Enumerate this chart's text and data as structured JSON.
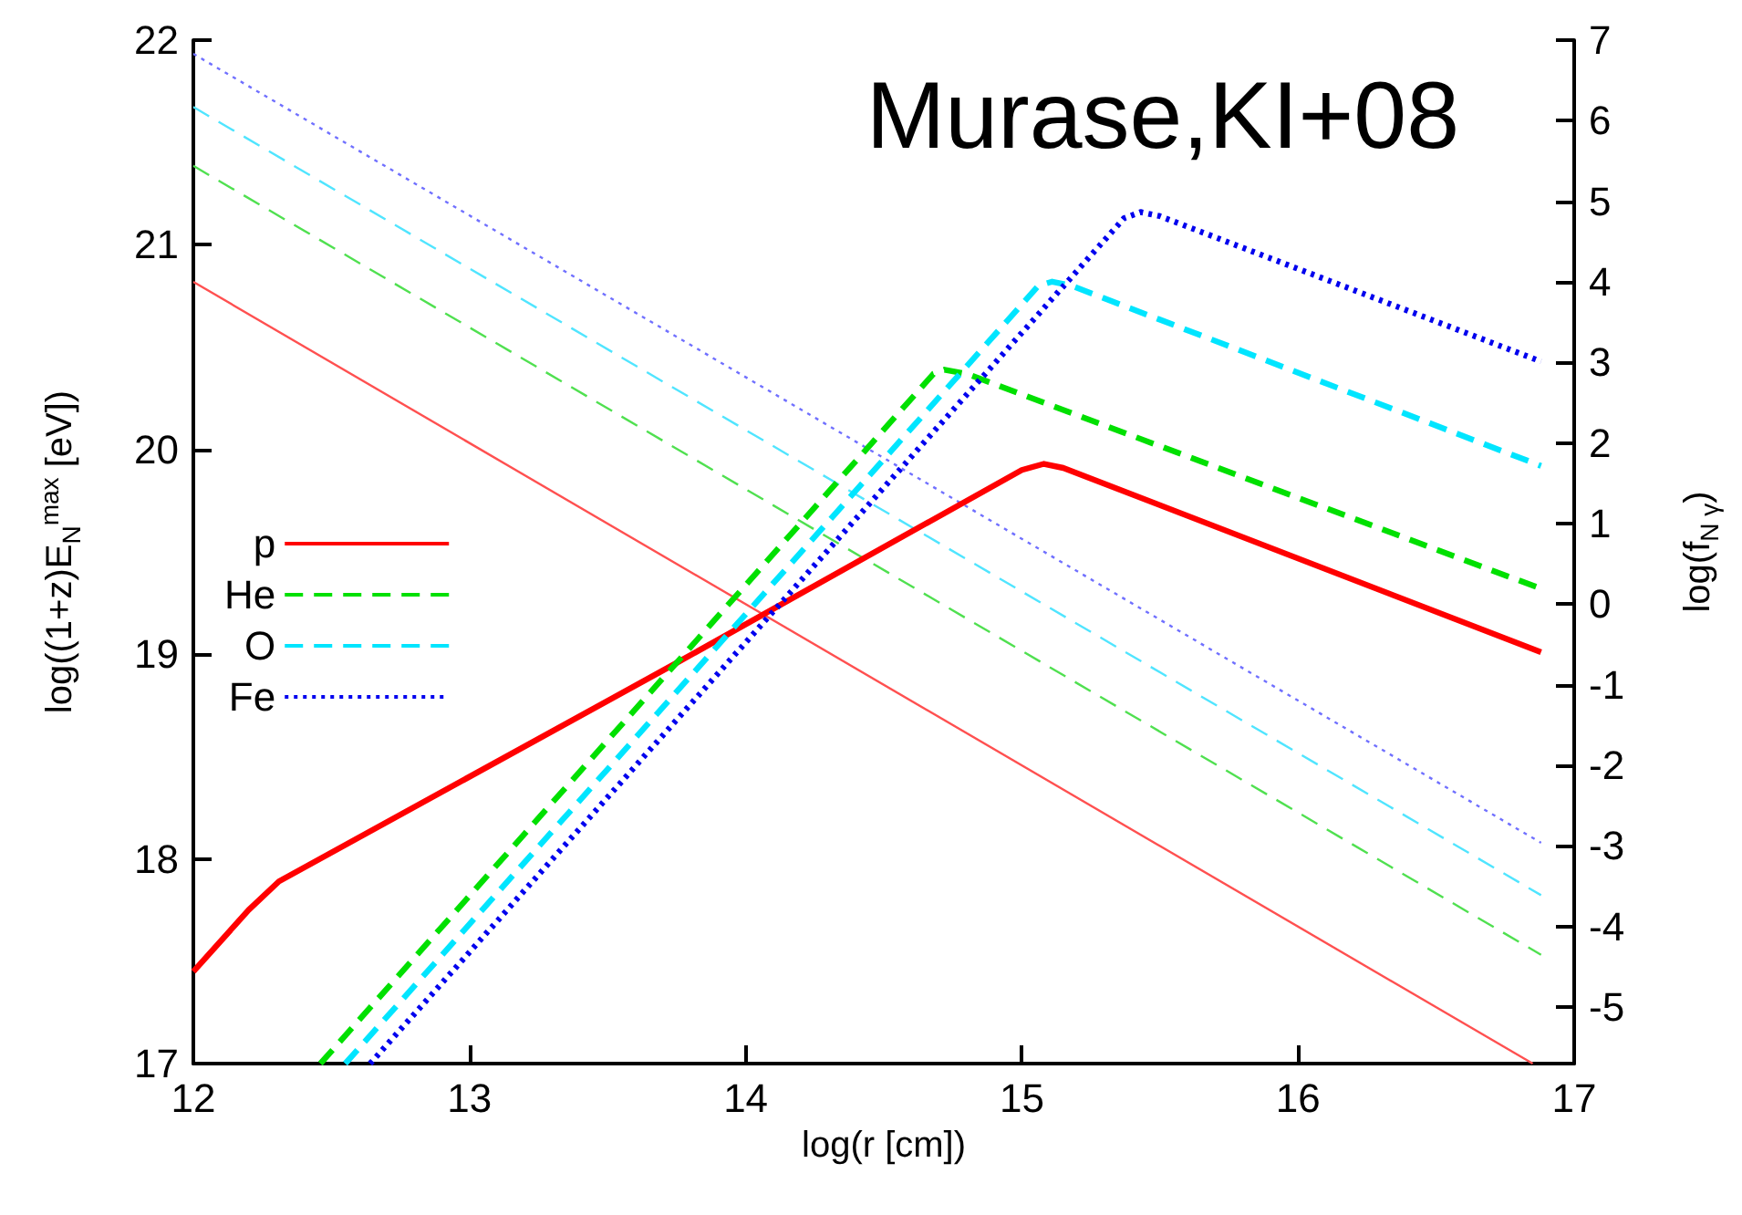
{
  "chart_data": {
    "type": "line",
    "xlabel": "log(r [cm])",
    "ylabel": "log((1+z)E$_{N}$$^{max}$ [eV])",
    "y2label": "log(f$_{N γ}$)",
    "annotations": [
      "Murase,KI+08"
    ],
    "xlim": [
      12,
      17
    ],
    "xticks": [
      12,
      13,
      14,
      15,
      16,
      17
    ],
    "ylim": [
      17,
      22
    ],
    "yticks": [
      17,
      18,
      19,
      20,
      21,
      22
    ],
    "y2lim": [
      -5.7,
      7
    ],
    "y2ticks": [
      -5,
      -4,
      -3,
      -2,
      -1,
      0,
      1,
      2,
      3,
      4,
      5,
      6,
      7
    ],
    "grid": false,
    "legend": "left",
    "marker": "none",
    "series": [
      {
        "name": "p",
        "color": "#ff0000",
        "line_style": "solid",
        "x": [
          12,
          12.2,
          12.31,
          13.74,
          15.0,
          15.08,
          15.15,
          16.88
        ],
        "values": [
          17.45,
          17.75,
          17.89,
          18.95,
          19.9,
          19.93,
          19.91,
          19.01
        ]
      },
      {
        "name": "He",
        "color": "#00e000",
        "line_style": "dashed",
        "x": [
          12.46,
          14.68,
          14.72,
          14.8,
          16.88
        ],
        "values": [
          17,
          20.37,
          20.39,
          20.37,
          19.32
        ]
      },
      {
        "name": "O",
        "color": "#00e5ff",
        "line_style": "dashed",
        "x": [
          12.55,
          15.06,
          15.11,
          15.18,
          16.88
        ],
        "values": [
          17,
          20.8,
          20.82,
          20.8,
          19.92
        ]
      },
      {
        "name": "Fe",
        "color": "#0000ee",
        "line_style": "dotted",
        "x": [
          12.64,
          15.37,
          15.43,
          15.5,
          16.88
        ],
        "values": [
          17,
          21.13,
          21.16,
          21.14,
          20.43
        ]
      },
      {
        "color": "#ff5050",
        "line_style": "solid",
        "axis": "y2",
        "x": [
          12,
          16.85
        ],
        "values": [
          4.0,
          -5.7
        ]
      },
      {
        "color": "#50e050",
        "line_style": "dashed",
        "axis": "y2",
        "x": [
          12,
          16.88
        ],
        "values": [
          5.44,
          -4.35
        ]
      },
      {
        "color": "#50e5ff",
        "line_style": "dashed",
        "axis": "y2",
        "x": [
          12,
          16.88
        ],
        "values": [
          6.17,
          -3.61
        ]
      },
      {
        "color": "#7070ff",
        "line_style": "dotted",
        "axis": "y2",
        "x": [
          12,
          16.88
        ],
        "values": [
          6.83,
          -2.96
        ]
      }
    ]
  }
}
